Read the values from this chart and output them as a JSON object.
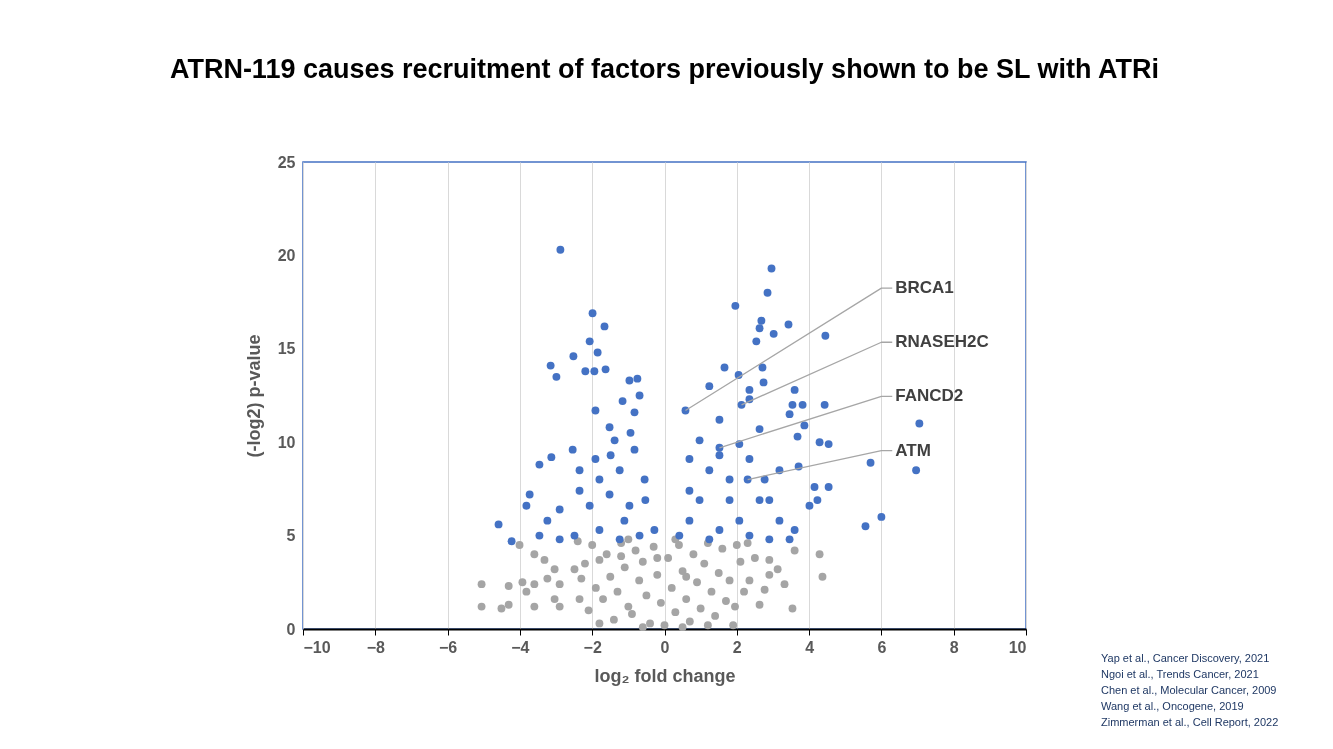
{
  "chart_data": {
    "type": "scatter",
    "title": "ATRN-119 causes recruitment of factors previously shown to be SL with ATRi",
    "xlabel": "log₂ fold change",
    "ylabel": "(-log2) p-value",
    "xlim": [
      -10,
      10
    ],
    "xticks": [
      -10,
      -8,
      -6,
      -4,
      -2,
      0,
      2,
      4,
      6,
      8,
      10
    ],
    "ylim": [
      0,
      25
    ],
    "yticks": [
      0,
      5,
      10,
      15,
      20,
      25
    ],
    "grid": "x",
    "marker": "circle",
    "legend": false,
    "series": [
      {
        "color": "#4472c4",
        "x": [
          -2.88,
          -1.99,
          -1.66,
          -2.07,
          -1.85,
          -3.15,
          -2.52,
          -2.99,
          -2.19,
          -1.94,
          -1.63,
          -0.97,
          -0.75,
          -0.69,
          -1.16,
          -1.91,
          -0.83,
          -1.52,
          -0.94,
          -1.49,
          -2.54,
          -3.13,
          -3.46,
          -3.73,
          -3.82,
          -4.59,
          -4.23,
          -3.24,
          -2.9,
          -2.35,
          -1.8,
          -1.24,
          -0.55,
          -0.53,
          -0.28,
          -1.11,
          -1.8,
          -2.49,
          -2.07,
          -1.52,
          -0.97,
          -2.9,
          -3.46,
          -1.24,
          -0.69,
          -2.35,
          -1.91,
          -0.83,
          -1.38,
          1.96,
          2.96,
          2.85,
          2.68,
          2.63,
          3.43,
          3.02,
          4.45,
          2.54,
          1.66,
          2.05,
          2.71,
          2.74,
          1.24,
          0.58,
          2.35,
          2.35,
          3.6,
          3.54,
          3.82,
          4.43,
          3.87,
          3.46,
          3.68,
          3.71,
          4.29,
          4.54,
          7.05,
          5.7,
          6.96,
          5.56,
          6.0,
          4.15,
          4.54,
          4.23,
          4.01,
          0.97,
          0.69,
          1.52,
          1.24,
          1.8,
          2.35,
          2.63,
          0.97,
          0.69,
          1.52,
          2.35,
          3.18,
          3.6,
          0.41,
          1.24,
          2.9,
          3.46,
          2.07,
          2.07,
          2.63,
          3.18,
          2.9,
          0.69,
          1.8,
          1.52,
          2.77,
          2.13,
          1.52,
          2.3
        ],
        "values": [
          20.3,
          16.9,
          16.2,
          15.4,
          14.8,
          14.1,
          14.6,
          13.5,
          13.8,
          13.8,
          13.9,
          13.3,
          13.4,
          12.5,
          12.2,
          11.7,
          11.6,
          10.8,
          10.5,
          9.3,
          9.6,
          9.2,
          8.8,
          7.2,
          6.6,
          5.6,
          4.7,
          5.8,
          6.4,
          7.4,
          8.0,
          8.5,
          8.0,
          6.9,
          5.3,
          5.8,
          5.3,
          5.0,
          6.6,
          7.2,
          6.6,
          4.8,
          5.0,
          4.8,
          5.0,
          8.5,
          9.1,
          9.6,
          10.1,
          17.3,
          19.3,
          18.0,
          16.5,
          16.1,
          16.3,
          15.8,
          15.7,
          15.4,
          14.0,
          13.6,
          14.0,
          13.2,
          13.0,
          11.7,
          12.8,
          12.3,
          12.8,
          12.0,
          12.0,
          12.0,
          10.9,
          11.5,
          10.3,
          8.7,
          10.0,
          9.9,
          11.0,
          8.9,
          8.5,
          5.5,
          6.0,
          7.6,
          7.6,
          6.9,
          6.6,
          10.1,
          9.1,
          11.2,
          8.5,
          8.0,
          9.1,
          6.9,
          6.9,
          5.8,
          5.3,
          5.0,
          5.8,
          5.3,
          5.0,
          4.8,
          4.8,
          4.8,
          5.8,
          9.9,
          10.7,
          8.5,
          6.9,
          7.4,
          6.9,
          9.3,
          8.0,
          12.0,
          9.7,
          8.0
        ]
      },
      {
        "color": "#a5a5a5",
        "x": [
          -5.06,
          -5.06,
          -4.51,
          -4.31,
          -4.31,
          -3.93,
          -3.82,
          -3.6,
          -3.6,
          -3.24,
          -3.04,
          -2.9,
          -2.9,
          -2.49,
          -2.35,
          -1.8,
          4.29,
          4.37,
          3.54,
          2.63,
          3.6,
          3.13,
          3.32,
          2.9,
          2.35,
          2.9,
          -4.01,
          -3.6,
          -3.32,
          -3.04,
          2.77,
          -2.0,
          -2.2,
          -1.9,
          -2.1,
          -1.6,
          -1.5,
          -1.7,
          -1.4,
          -1.2,
          -1.1,
          -1.3,
          -1.0,
          -0.8,
          -0.7,
          -0.9,
          -0.6,
          -0.5,
          -0.4,
          -0.3,
          -0.2,
          -0.1,
          0.0,
          0.1,
          0.2,
          0.3,
          0.4,
          0.5,
          0.6,
          0.7,
          0.8,
          0.9,
          1.0,
          1.1,
          1.2,
          1.3,
          1.4,
          1.5,
          1.6,
          1.7,
          1.8,
          1.9,
          2.0,
          2.1,
          1.95,
          -1.8,
          -0.6,
          0.5,
          1.2,
          -1.0,
          0.3,
          -2.4,
          -2.3,
          2.3,
          2.5,
          2.2,
          -0.2,
          0.6,
          -1.2
        ],
        "values": [
          2.4,
          1.2,
          1.1,
          2.3,
          1.3,
          2.5,
          2.0,
          1.2,
          2.4,
          2.7,
          1.6,
          2.4,
          1.2,
          3.2,
          1.6,
          3.7,
          4.0,
          2.8,
          1.1,
          1.3,
          4.2,
          3.2,
          2.4,
          2.9,
          2.6,
          3.7,
          4.5,
          4.0,
          3.7,
          3.2,
          2.1,
          4.5,
          3.5,
          2.2,
          1.0,
          4.0,
          2.8,
          1.6,
          0.5,
          4.6,
          3.3,
          2.0,
          1.2,
          4.2,
          2.6,
          0.8,
          3.6,
          1.8,
          0.3,
          4.4,
          2.9,
          1.4,
          0.2,
          3.8,
          2.2,
          0.9,
          4.5,
          3.1,
          1.6,
          0.4,
          4.0,
          2.5,
          1.1,
          3.5,
          4.6,
          2.0,
          0.7,
          3.0,
          4.3,
          1.5,
          2.6,
          0.2,
          4.5,
          3.6,
          1.2,
          0.3,
          0.1,
          0.1,
          0.2,
          4.8,
          4.8,
          4.7,
          2.7,
          4.6,
          3.8,
          2.0,
          3.8,
          2.8,
          3.9
        ]
      }
    ],
    "annotations": [
      {
        "text": "BRCA1",
        "x": 0.58,
        "y": 11.7
      },
      {
        "text": "RNASEH2C",
        "x": 2.13,
        "y": 12.0
      },
      {
        "text": "FANCD2",
        "x": 1.52,
        "y": 9.7
      },
      {
        "text": "ATM",
        "x": 2.3,
        "y": 8.0
      },
      "Yap et al., Cancer Discovery, 2021",
      "Ngoi et al., Trends Cancer, 2021",
      "Chen et al., Molecular Cancer, 2009",
      "Wang et al., Oncogene, 2019",
      "Zimmerman et al., Cell Report, 2022"
    ]
  }
}
